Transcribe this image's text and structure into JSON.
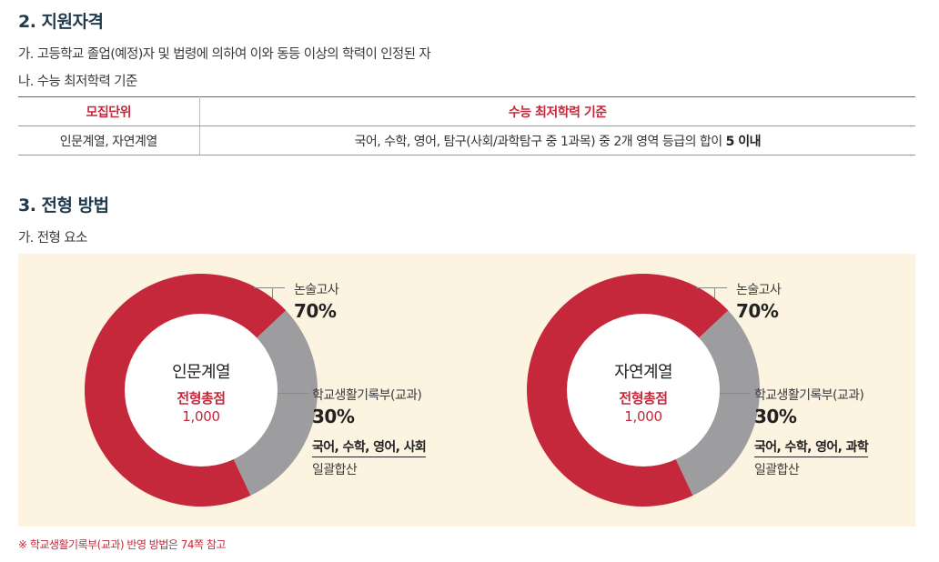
{
  "section2": {
    "title": "2. 지원자격",
    "item_a": "가. 고등학교 졸업(예정)자 및 법령에 의하여 이와 동등 이상의 학력이 인정된 자",
    "item_b": "나. 수능 최저학력 기준"
  },
  "table": {
    "headers": [
      "모집단위",
      "수능 최저학력 기준"
    ],
    "row": {
      "unit": "인문계열, 자연계열",
      "criteria_prefix": "국어, 수학, 영어, 탐구(사회/과학탐구 중 1과목) 중 2개 영역 등급의 합이",
      "criteria_value": "5 이내"
    }
  },
  "section3": {
    "title": "3. 전형 방법",
    "item_a": "가. 전형 요소"
  },
  "charts": [
    {
      "name": "인문계열",
      "total_label": "전형총점",
      "total_value": "1,000",
      "essay_label": "논술고사",
      "essay_pct": "70%",
      "record_label": "학교생활기록부(교과)",
      "record_pct": "30%",
      "subjects": "국어, 수학, 영어, 사회",
      "summation": "일괄합산"
    },
    {
      "name": "자연계열",
      "total_label": "전형총점",
      "total_value": "1,000",
      "essay_label": "논술고사",
      "essay_pct": "70%",
      "record_label": "학교생활기록부(교과)",
      "record_pct": "30%",
      "subjects": "국어, 수학, 영어, 과학",
      "summation": "일괄합산"
    }
  ],
  "chart_data": [
    {
      "type": "pie",
      "name": "인문계열",
      "categories": [
        "논술고사",
        "학교생활기록부(교과)"
      ],
      "values": [
        70,
        30
      ],
      "colors": [
        "#c4283a",
        "#9d9da0"
      ]
    },
    {
      "type": "pie",
      "name": "자연계열",
      "categories": [
        "논술고사",
        "학교생활기록부(교과)"
      ],
      "values": [
        70,
        30
      ],
      "colors": [
        "#c4283a",
        "#9d9da0"
      ]
    }
  ],
  "note": "※ 학교생활기록부(교과) 반영 방법은 74쪽 참고"
}
